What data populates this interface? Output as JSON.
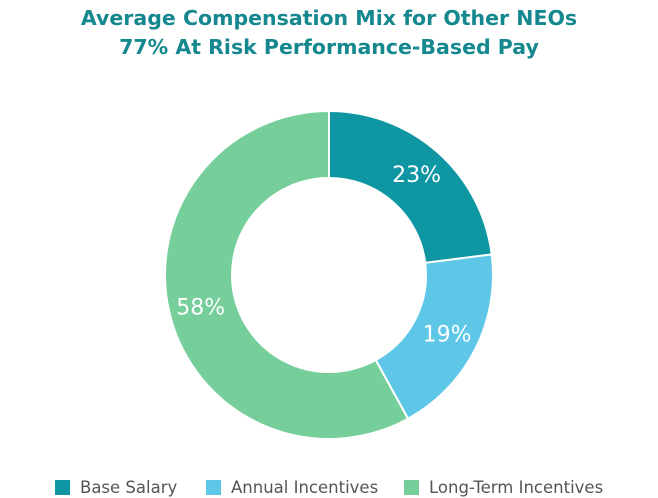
{
  "chart_data": {
    "type": "pie",
    "style": "donut",
    "title": "Average Compensation Mix for Other NEOs",
    "subtitle": "77% At Risk Performance-Based Pay",
    "categories": [
      "Base Salary",
      "Annual Incentives",
      "Long-Term Incentives"
    ],
    "values": [
      23,
      19,
      58
    ],
    "value_labels": [
      "23%",
      "19%",
      "58%"
    ],
    "colors": [
      "#0e97a3",
      "#5ec7e8",
      "#76cf9b"
    ],
    "legend_position": "bottom"
  }
}
